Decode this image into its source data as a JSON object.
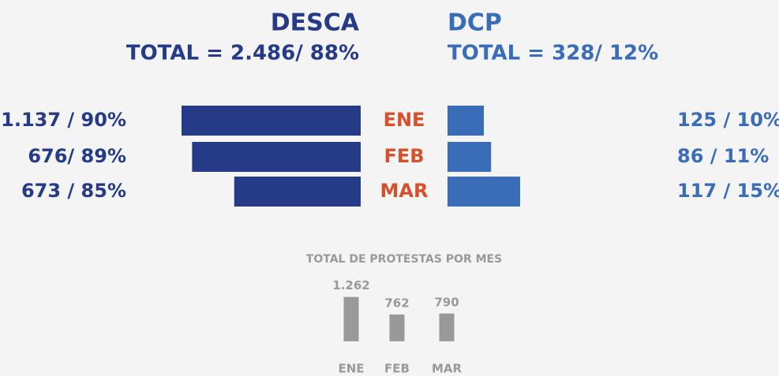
{
  "chart_data": [
    {
      "type": "butterfly",
      "categories": [
        "ENE",
        "FEB",
        "MAR"
      ],
      "category_color": "#d4512b",
      "left": {
        "title": "DESCA",
        "subtitle": "TOTAL = 2.486/ 88%",
        "color": "#253b88",
        "values": [
          1137,
          676,
          673
        ],
        "percents": [
          90,
          89,
          85
        ],
        "value_labels": [
          "1.137 / 90%",
          "676/ 89%",
          "673 / 85%"
        ],
        "xlim": [
          73,
          90
        ]
      },
      "right": {
        "title": "DCP",
        "subtitle": "TOTAL = 328/ 12%",
        "color": "#3a6db8",
        "values": [
          125,
          86,
          117
        ],
        "percents": [
          10,
          11,
          15
        ],
        "value_labels": [
          "125 / 10%",
          "86 / 11%",
          "117 / 15%"
        ],
        "xlim": [
          5,
          15
        ]
      }
    },
    {
      "type": "bar",
      "title": "TOTAL DE PROTESTAS POR MES",
      "categories": [
        "ENE",
        "FEB",
        "MAR"
      ],
      "values": [
        1262,
        762,
        790
      ],
      "value_labels": [
        "1.262",
        "762",
        "790"
      ],
      "color": "#999999",
      "ylim": [
        0,
        1300
      ]
    }
  ]
}
